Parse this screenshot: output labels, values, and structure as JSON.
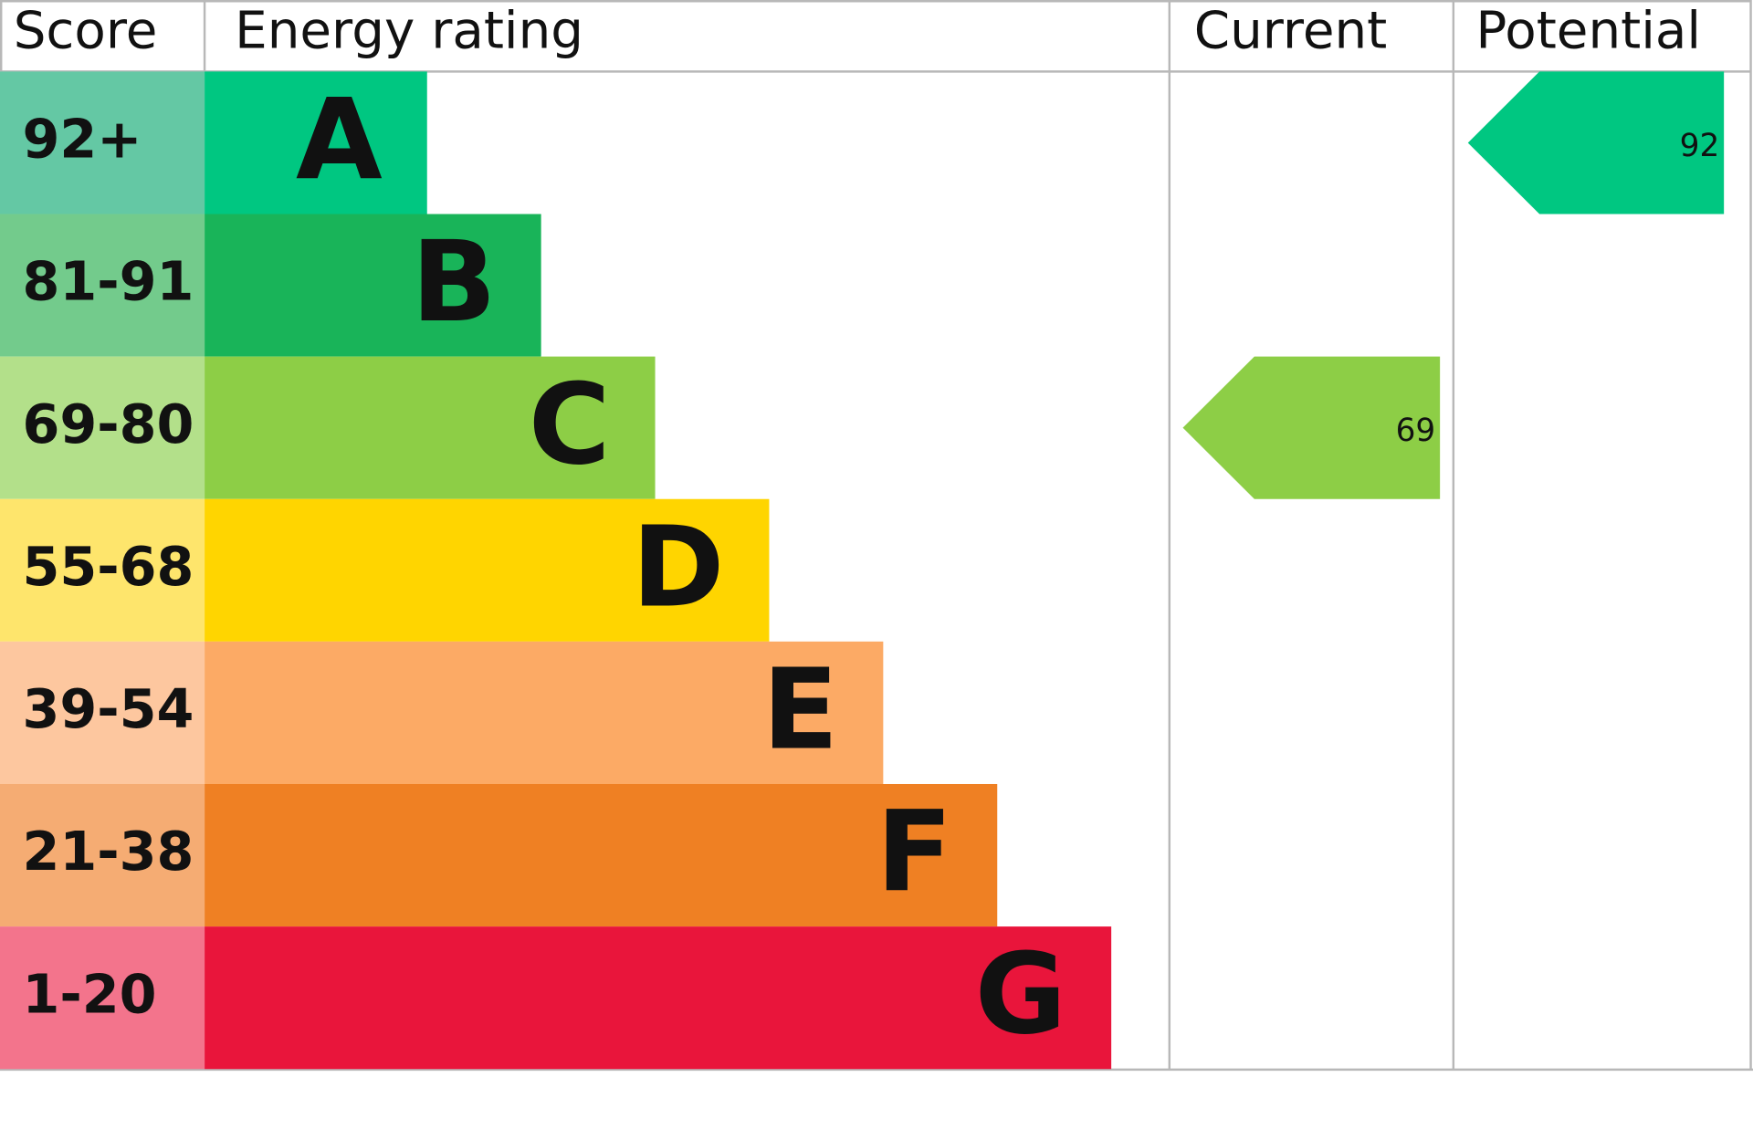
{
  "header": {
    "score": "Score",
    "rating": "Energy rating",
    "current": "Current",
    "potential": "Potential"
  },
  "bands": [
    {
      "score": "92+",
      "letter": "A",
      "color": "#00c781",
      "light": "#64c8a4"
    },
    {
      "score": "81-91",
      "letter": "B",
      "color": "#19b459",
      "light": "#73cb8c"
    },
    {
      "score": "69-80",
      "letter": "C",
      "color": "#8dce46",
      "light": "#b3e08a"
    },
    {
      "score": "55-68",
      "letter": "D",
      "color": "#ffd500",
      "light": "#fee56c"
    },
    {
      "score": "39-54",
      "letter": "E",
      "color": "#fcaa65",
      "light": "#fdc79f"
    },
    {
      "score": "21-38",
      "letter": "F",
      "color": "#ef8023",
      "light": "#f5ac73"
    },
    {
      "score": "1-20",
      "letter": "G",
      "color": "#e9153b",
      "light": "#f3748c"
    }
  ],
  "current": {
    "value": "69"
  },
  "potential": {
    "value": "92"
  }
}
